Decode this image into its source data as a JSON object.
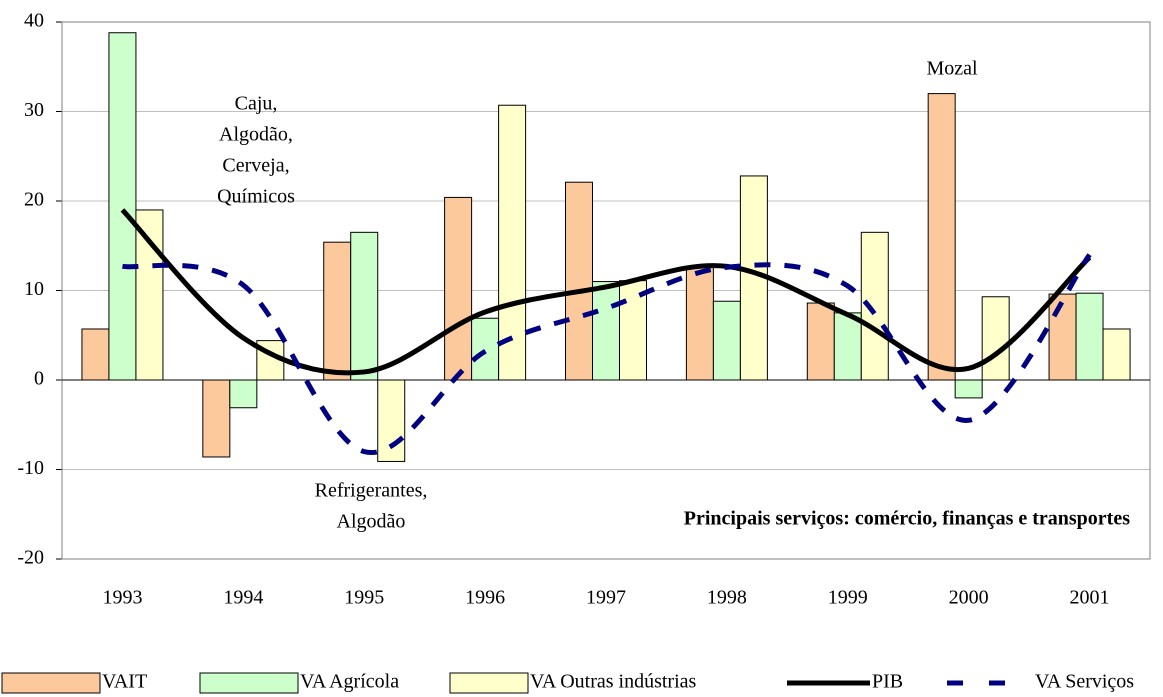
{
  "chart_data": {
    "type": "bar",
    "categories": [
      "1993",
      "1994",
      "1995",
      "1996",
      "1997",
      "1998",
      "1999",
      "2000",
      "2001"
    ],
    "series": [
      {
        "name": "VAIT",
        "type": "bar",
        "color": "#fcc99c",
        "values": [
          5.7,
          -8.6,
          15.4,
          20.4,
          22.1,
          12.7,
          8.6,
          32.0,
          9.6
        ]
      },
      {
        "name": "VA Agrícola",
        "type": "bar",
        "color": "#ccffcc",
        "values": [
          38.8,
          -3.1,
          16.5,
          6.9,
          11.0,
          8.8,
          7.5,
          -2.0,
          9.7
        ]
      },
      {
        "name": "VA Outras indústrias",
        "type": "bar",
        "color": "#ffffcc",
        "values": [
          19.0,
          4.4,
          -9.1,
          30.7,
          11.1,
          22.8,
          16.5,
          9.3,
          5.7
        ]
      },
      {
        "name": "PIB",
        "type": "line",
        "color": "#000000",
        "values": [
          19.0,
          4.7,
          0.9,
          7.6,
          10.4,
          12.7,
          7.3,
          1.3,
          13.7
        ]
      },
      {
        "name": "VA Serviços",
        "type": "dashed-line",
        "color": "#000080",
        "values": [
          12.7,
          10.6,
          -8.0,
          3.2,
          8.0,
          12.6,
          10.5,
          -4.5,
          14.0
        ]
      }
    ],
    "ylim": [
      -20,
      40
    ],
    "yticks": [
      -20,
      -10,
      0,
      10,
      20,
      30,
      40
    ],
    "grid": true,
    "annotations": [
      {
        "lines": [
          "Caju,",
          "Algodão,",
          "Cerveja,",
          "Químicos"
        ]
      },
      {
        "lines": [
          "Mozal"
        ]
      },
      {
        "lines": [
          "Refrigerantes,",
          "Algodão"
        ]
      },
      {
        "lines": [
          "Principais serviços: comércio, finanças e transportes"
        ],
        "bold": true
      }
    ]
  }
}
